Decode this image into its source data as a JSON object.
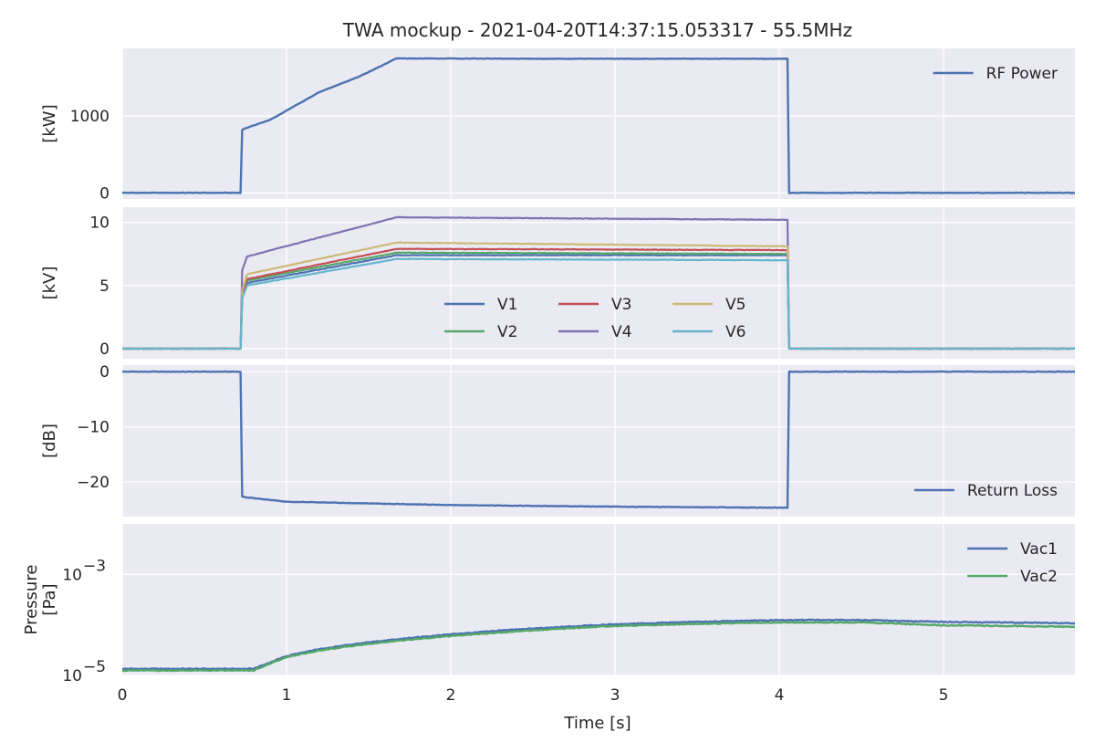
{
  "chart_data": {
    "type": "line",
    "title": "TWA mockup - 2021-04-20T14:37:15.053317 - 55.5MHz",
    "xlabel": "Time [s]",
    "xlim": [
      0,
      5.8
    ],
    "xticks": [
      0,
      1,
      2,
      3,
      4,
      5
    ],
    "xtick_labels": [
      "0",
      "1",
      "2",
      "3",
      "4",
      "5"
    ],
    "panels": [
      {
        "ylabel": "[kW]",
        "ylim": [
          -80,
          1880
        ],
        "yticks": [
          0,
          1000
        ],
        "ytick_labels": [
          "0",
          "1000"
        ],
        "legend_position": "upper-right",
        "legend_cols": 1,
        "series": [
          {
            "name": "RF Power",
            "color": "#4c72b0",
            "x": [
              0,
              0.72,
              0.73,
              0.75,
              0.9,
              1.2,
              1.45,
              1.67,
              2.5,
              3.5,
              4.05,
              4.06,
              5.8
            ],
            "y": [
              0,
              0,
              820,
              840,
              950,
              1310,
              1520,
              1750,
              1745,
              1745,
              1745,
              0,
              0
            ]
          }
        ]
      },
      {
        "ylabel": "[kV]",
        "ylim": [
          -0.8,
          11.2
        ],
        "yticks": [
          0,
          5,
          10
        ],
        "ytick_labels": [
          "0",
          "5",
          "10"
        ],
        "legend_position": "lower-center",
        "legend_cols": 3,
        "series": [
          {
            "name": "V1",
            "color": "#4c72b0",
            "x": [
              0,
              0.72,
              0.73,
              0.76,
              1.67,
              4.05,
              4.06,
              5.8
            ],
            "y": [
              0,
              0,
              4.0,
              5.2,
              7.4,
              7.4,
              0,
              0
            ]
          },
          {
            "name": "V2",
            "color": "#55a868",
            "x": [
              0,
              0.72,
              0.73,
              0.76,
              1.67,
              4.05,
              4.06,
              5.8
            ],
            "y": [
              0,
              0,
              4.2,
              5.4,
              7.6,
              7.5,
              0,
              0
            ]
          },
          {
            "name": "V3",
            "color": "#c44e52",
            "x": [
              0,
              0.72,
              0.73,
              0.76,
              1.67,
              4.05,
              4.06,
              5.8
            ],
            "y": [
              0,
              0,
              4.3,
              5.5,
              7.9,
              7.8,
              0,
              0
            ]
          },
          {
            "name": "V4",
            "color": "#8172b3",
            "x": [
              0,
              0.72,
              0.73,
              0.76,
              1.67,
              4.05,
              4.06,
              5.8
            ],
            "y": [
              0,
              0,
              6.2,
              7.3,
              10.4,
              10.2,
              0,
              0
            ]
          },
          {
            "name": "V5",
            "color": "#ccb974",
            "x": [
              0,
              0.72,
              0.73,
              0.76,
              1.67,
              4.05,
              4.06,
              5.8
            ],
            "y": [
              0,
              0,
              4.6,
              5.9,
              8.4,
              8.1,
              0,
              0
            ]
          },
          {
            "name": "V6",
            "color": "#64b5cd",
            "x": [
              0,
              0.72,
              0.73,
              0.76,
              1.67,
              4.05,
              4.06,
              5.8
            ],
            "y": [
              0,
              0,
              4.0,
              5.0,
              7.1,
              7.0,
              0,
              0
            ]
          }
        ]
      },
      {
        "ylabel": "[dB]",
        "ylim": [
          -26.3,
          1.2
        ],
        "yticks": [
          0,
          -10,
          -20
        ],
        "ytick_labels": [
          "0",
          "−10",
          "−20"
        ],
        "legend_position": "lower-right",
        "legend_cols": 1,
        "series": [
          {
            "name": "Return Loss",
            "color": "#4c72b0",
            "x": [
              0,
              0.72,
              0.73,
              0.75,
              1.0,
              2.0,
              3.0,
              4.05,
              4.06,
              5.8
            ],
            "y": [
              0,
              0,
              -22.6,
              -22.8,
              -23.6,
              -24.2,
              -24.5,
              -24.7,
              0,
              0
            ]
          }
        ]
      },
      {
        "ylabel": "Pressure\n[Pa]",
        "log": true,
        "ylim": [
          1e-05,
          0.01
        ],
        "yticks": [
          1e-05,
          0.001
        ],
        "ytick_labels": [
          [
            "10",
            "−5"
          ],
          [
            "10",
            "−3"
          ]
        ],
        "legend_position": "upper-right",
        "legend_cols": 1,
        "series": [
          {
            "name": "Vac1",
            "color": "#4c72b0",
            "x": [
              0,
              0.8,
              0.9,
              1.0,
              1.2,
              1.5,
              2.0,
              2.5,
              3.0,
              3.5,
              4.0,
              4.5,
              5.0,
              5.8
            ],
            "y": [
              1.35e-05,
              1.35e-05,
              1.8e-05,
              2.4e-05,
              3.3e-05,
              4.5e-05,
              6.5e-05,
              8.5e-05,
              0.000103,
              0.000115,
              0.000125,
              0.000125,
              0.000115,
              0.000108
            ]
          },
          {
            "name": "Vac2",
            "color": "#55a868",
            "x": [
              0,
              0.8,
              0.9,
              1.0,
              1.2,
              1.5,
              2.0,
              2.5,
              3.0,
              3.5,
              4.0,
              4.5,
              5.0,
              5.8
            ],
            "y": [
              1.25e-05,
              1.25e-05,
              1.7e-05,
              2.3e-05,
              3.1e-05,
              4.2e-05,
              6e-05,
              7.8e-05,
              9.5e-05,
              0.000105,
              0.000112,
              0.000112,
              9.8e-05,
              9.2e-05
            ]
          }
        ]
      }
    ]
  }
}
